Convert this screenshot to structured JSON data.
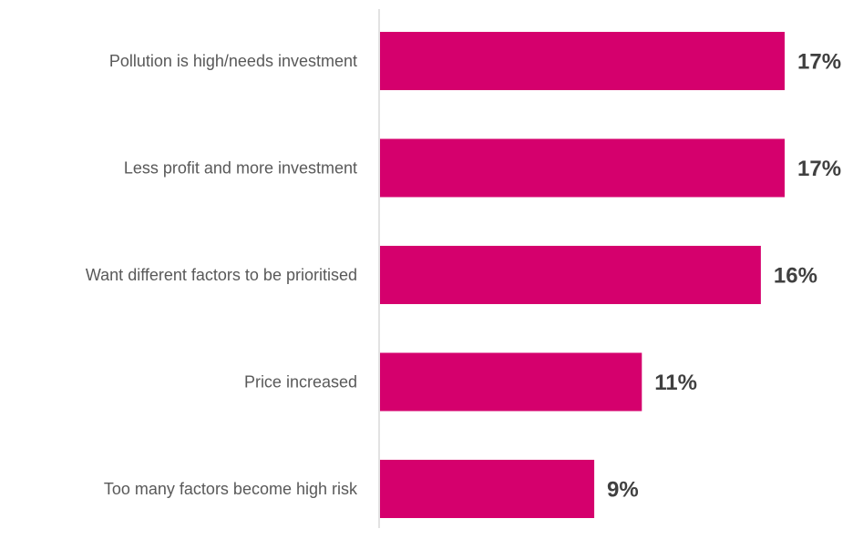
{
  "chart_data": {
    "type": "bar",
    "orientation": "horizontal",
    "title": "",
    "xlabel": "",
    "ylabel": "",
    "categories": [
      "Pollution is high/needs investment",
      "Less profit and more investment",
      "Want different factors to be prioritised",
      "Price increased",
      "Too many factors become high risk"
    ],
    "values": [
      17,
      17,
      16,
      11,
      9
    ],
    "value_labels": [
      "17%",
      "17%",
      "16%",
      "11%",
      "9%"
    ],
    "xlim": [
      0,
      17
    ],
    "grid": false,
    "legend": "none",
    "colors": {
      "bar": "#d5006d",
      "category_text": "#595959",
      "value_text": "#404040",
      "axis": "#d9d9d9"
    }
  }
}
